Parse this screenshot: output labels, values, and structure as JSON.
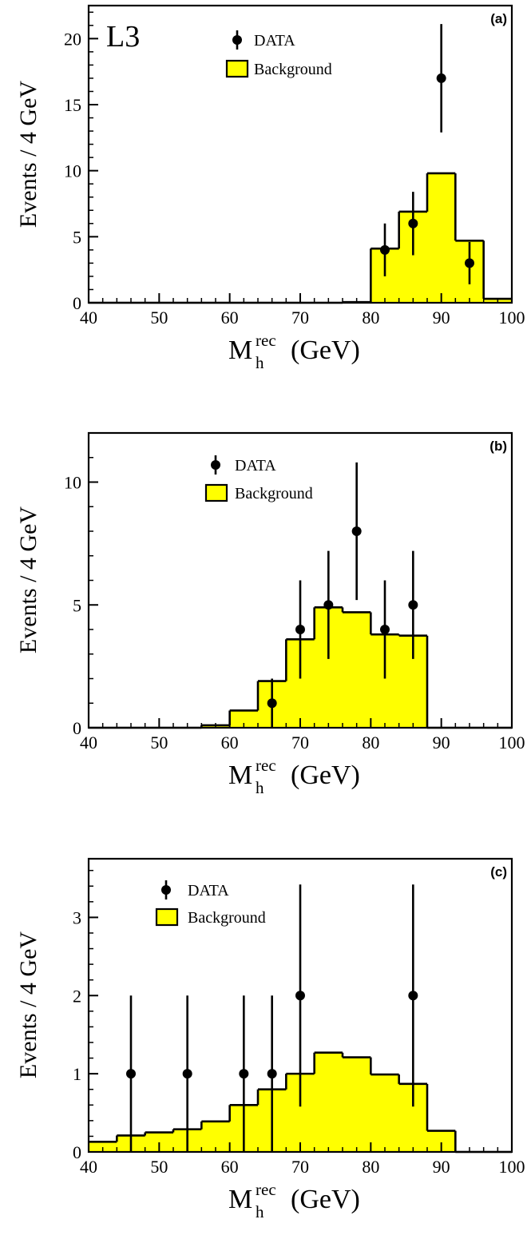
{
  "chart_data": [
    {
      "type": "histogram",
      "panel_label": "(a)",
      "experiment_label": "L3",
      "xlabel": "M",
      "xlabel_sub": "h",
      "xlabel_sup": "rec",
      "xlabel_unit": "(GeV)",
      "ylabel": "Events / 4 GeV",
      "xlim": [
        40,
        100
      ],
      "ylim": [
        0,
        22.5
      ],
      "x_ticks": [
        40,
        50,
        60,
        70,
        80,
        90,
        100
      ],
      "y_ticks": [
        0,
        5,
        10,
        15,
        20
      ],
      "legend": {
        "position": "top-left",
        "data_label": "DATA",
        "background_label": "Background"
      },
      "background": {
        "bin_edges": [
          40,
          44,
          48,
          52,
          56,
          60,
          64,
          68,
          72,
          76,
          80,
          84,
          88,
          92,
          96,
          100
        ],
        "values": [
          0,
          0,
          0,
          0,
          0,
          0,
          0,
          0,
          0,
          0.05,
          4.1,
          6.9,
          9.8,
          4.7,
          0.3
        ]
      },
      "data": {
        "x": [
          82,
          86,
          90,
          94
        ],
        "y": [
          4,
          6,
          17,
          3
        ],
        "err_low": [
          2.0,
          2.4,
          4.1,
          1.6
        ],
        "err_high": [
          2.0,
          2.4,
          4.1,
          1.6
        ]
      },
      "colors": {
        "fill": "#ffff00",
        "line": "#000000"
      }
    },
    {
      "type": "histogram",
      "panel_label": "(b)",
      "xlabel": "M",
      "xlabel_sub": "h",
      "xlabel_sup": "rec",
      "xlabel_unit": "(GeV)",
      "ylabel": "Events / 4 GeV",
      "xlim": [
        40,
        100
      ],
      "ylim": [
        0,
        12
      ],
      "x_ticks": [
        40,
        50,
        60,
        70,
        80,
        90,
        100
      ],
      "y_ticks": [
        0,
        5,
        10
      ],
      "legend": {
        "position": "top-left",
        "data_label": "DATA",
        "background_label": "Background"
      },
      "background": {
        "bin_edges": [
          40,
          44,
          48,
          52,
          56,
          60,
          64,
          68,
          72,
          76,
          80,
          84,
          88,
          92,
          96,
          100
        ],
        "values": [
          0,
          0,
          0,
          0,
          0.1,
          0.7,
          1.9,
          3.6,
          4.9,
          4.7,
          3.8,
          3.75,
          0,
          0,
          0
        ]
      },
      "data": {
        "x": [
          66,
          70,
          74,
          78,
          82,
          86
        ],
        "y": [
          1,
          4,
          5,
          8,
          4,
          5
        ],
        "err_low": [
          1.0,
          2.0,
          2.2,
          2.8,
          2.0,
          2.2
        ],
        "err_high": [
          1.0,
          2.0,
          2.2,
          2.8,
          2.0,
          2.2
        ]
      },
      "colors": {
        "fill": "#ffff00",
        "line": "#000000"
      }
    },
    {
      "type": "histogram",
      "panel_label": "(c)",
      "xlabel": "M",
      "xlabel_sub": "h",
      "xlabel_sup": "rec",
      "xlabel_unit": "(GeV)",
      "ylabel": "Events / 4 GeV",
      "xlim": [
        40,
        100
      ],
      "ylim": [
        0,
        3.75
      ],
      "x_ticks": [
        40,
        50,
        60,
        70,
        80,
        90,
        100
      ],
      "y_ticks": [
        0,
        1,
        2,
        3
      ],
      "legend": {
        "position": "top-left",
        "data_label": "DATA",
        "background_label": "Background"
      },
      "background": {
        "bin_edges": [
          40,
          44,
          48,
          52,
          56,
          60,
          64,
          68,
          72,
          76,
          80,
          84,
          88,
          92,
          96,
          100
        ],
        "values": [
          0.13,
          0.21,
          0.25,
          0.29,
          0.39,
          0.6,
          0.8,
          1.0,
          1.27,
          1.21,
          0.99,
          0.87,
          0.27,
          0,
          0
        ]
      },
      "data": {
        "x": [
          46,
          54,
          62,
          66,
          70,
          86
        ],
        "y": [
          1,
          1,
          1,
          1,
          2,
          2
        ],
        "err_low": [
          1,
          1,
          1,
          1,
          1.42,
          1.42
        ],
        "err_high": [
          1,
          1,
          1,
          1,
          1.42,
          1.42
        ]
      },
      "colors": {
        "fill": "#ffff00",
        "line": "#000000"
      }
    }
  ]
}
